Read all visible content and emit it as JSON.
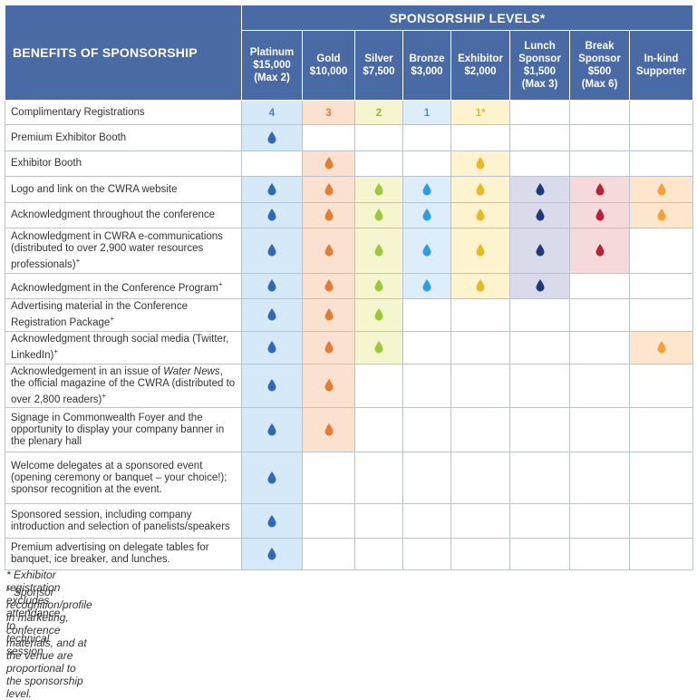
{
  "colors": {
    "header_bg": "#4a6aa6",
    "platinum": "#d6e9f8",
    "gold": "#fbe1cf",
    "silver": "#f5f6cf",
    "bronze": "#ddeefa",
    "exhibitor": "#fdf4cf",
    "lunch": "#d9dbeb",
    "break": "#f6dadb",
    "inkind": "#fde6cc"
  },
  "header": {
    "benefits_title": "BENEFITS OF SPONSORSHIP",
    "levels_title": "SPONSORSHIP LEVELS*",
    "levels": [
      {
        "lines": [
          "Platinum",
          "$15,000",
          "(Max 2)"
        ],
        "color_key": "platinum",
        "drop": "#2f6bb5",
        "num": "#3c84c8"
      },
      {
        "lines": [
          "Gold",
          "$10,000"
        ],
        "color_key": "gold",
        "drop": "#e37c35",
        "num": "#e37c35"
      },
      {
        "lines": [
          "Silver",
          "$7,500"
        ],
        "color_key": "silver",
        "drop": "#9bc93c",
        "num": "#8bbd2f"
      },
      {
        "lines": [
          "Bronze",
          "$3,000"
        ],
        "color_key": "bronze",
        "drop": "#2f9ee0",
        "num": "#2f9ee0"
      },
      {
        "lines": [
          "Exhibitor",
          "$2,000"
        ],
        "color_key": "exhibitor",
        "drop": "#e9b826",
        "num": "#e9b826"
      },
      {
        "lines": [
          "Lunch",
          "Sponsor",
          "$1,500",
          "(Max 3)"
        ],
        "color_key": "lunch",
        "drop": "#1f3a7c",
        "num": "#1f3a7c"
      },
      {
        "lines": [
          "Break",
          "Sponsor",
          "$500",
          "(Max 6)"
        ],
        "color_key": "break",
        "drop": "#b52335",
        "num": "#b52335"
      },
      {
        "lines": [
          "In-kind",
          "Supporter"
        ],
        "color_key": "inkind",
        "drop": "#f3a23a",
        "num": "#f3a23a"
      }
    ]
  },
  "rows": [
    {
      "label": "Complimentary Registrations",
      "sup": "",
      "cells": [
        "4",
        "3",
        "2",
        "1",
        "1*",
        "",
        "",
        ""
      ],
      "h": 27
    },
    {
      "label": "Premium Exhibitor Booth",
      "sup": "",
      "cells": [
        "drop",
        "",
        "",
        "",
        "",
        "",
        "",
        ""
      ],
      "h": 29
    },
    {
      "label": "Exhibitor Booth",
      "sup": "",
      "cells": [
        "",
        "drop",
        "",
        "",
        "drop",
        "",
        "",
        ""
      ],
      "h": 28
    },
    {
      "label": "Logo and link on the CWRA website",
      "sup": "",
      "cells": [
        "drop",
        "drop",
        "drop",
        "drop",
        "drop",
        "drop",
        "drop",
        "drop"
      ],
      "h": 29
    },
    {
      "label": "Acknowledgment throughout the conference",
      "sup": "",
      "cells": [
        "drop",
        "drop",
        "drop",
        "drop",
        "drop",
        "drop",
        "drop",
        "drop"
      ],
      "h": 28
    },
    {
      "label": "Acknowledgment in CWRA e-communications (distributed to over 2,900 water resources professionals)",
      "sup": "+",
      "cells": [
        "drop",
        "drop",
        "drop",
        "drop",
        "drop",
        "drop",
        "drop",
        ""
      ],
      "h": 50
    },
    {
      "label": "Acknowledgment in the Conference Program",
      "sup": "+",
      "cells": [
        "drop",
        "drop",
        "drop",
        "drop",
        "drop",
        "drop",
        "",
        ""
      ],
      "h": 28
    },
    {
      "label": "Advertising material in the Conference Registration Package",
      "sup": "+",
      "cells": [
        "drop",
        "drop",
        "drop",
        "",
        "",
        "",
        "",
        ""
      ],
      "h": 33
    },
    {
      "label": "Acknowledgment through social media (Twitter, LinkedIn)",
      "sup": "+",
      "cells": [
        "drop",
        "drop",
        "drop",
        "",
        "",
        "",
        "",
        "drop"
      ],
      "h": 34
    },
    {
      "label_html_parts": [
        "Acknowledgement in an issue of ",
        "Water News",
        ", the official magazine of the CWRA (distributed to over 2,800 readers)"
      ],
      "label": "Acknowledgement in an issue of Water News, the official magazine of the CWRA (distributed to over 2,800 readers)",
      "sup": "+",
      "cells": [
        "drop",
        "drop",
        "",
        "",
        "",
        "",
        "",
        ""
      ],
      "h": 48
    },
    {
      "label": "Signage in Commonwealth Foyer and the opportunity to display your company banner in the plenary hall",
      "sup": "",
      "cells": [
        "drop",
        "drop",
        "",
        "",
        "",
        "",
        "",
        ""
      ],
      "h": 49
    },
    {
      "label": "Welcome delegates at a sponsored event (opening ceremony or banquet – your choice!); sponsor recognition at the event.",
      "sup": "",
      "cells": [
        "drop",
        "",
        "",
        "",
        "",
        "",
        "",
        ""
      ],
      "h": 57
    },
    {
      "label": "Sponsored session, including company introduction and selection of panelists/speakers",
      "sup": "",
      "cells": [
        "drop",
        "",
        "",
        "",
        "",
        "",
        "",
        ""
      ],
      "h": 38
    },
    {
      "label": "Premium advertising on delegate tables for banquet, ice breaker, and lunches.",
      "sup": "",
      "cells": [
        "drop",
        "",
        "",
        "",
        "",
        "",
        "",
        ""
      ],
      "h": 35
    }
  ],
  "footnotes": [
    {
      "mark": "*",
      "text": " Exhibitor registration excludes attendance to technical session"
    },
    {
      "mark": "+",
      "text": " Sponsor recognition/profile in marketing, conference materials, and at the venue are proportional to the sponsorship level."
    }
  ]
}
